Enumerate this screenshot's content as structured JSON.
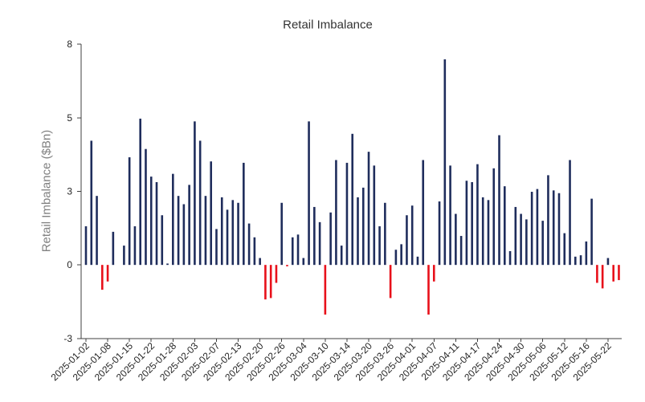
{
  "chart_data": {
    "type": "bar",
    "title": "Retail Imbalance",
    "ylabel": "Retail Imbalance ($Bn)",
    "ylim": [
      -2.67,
      8
    ],
    "yticks": [
      8,
      5.33,
      2.67,
      0,
      -2.67
    ],
    "ytick_labels": [
      "8",
      "5",
      "3",
      "0",
      "-3"
    ],
    "grid": false,
    "legend": "none",
    "colors": {
      "positive": "#1f2d5c",
      "negative": "#e8101a"
    },
    "categories": [
      "2025-01-02",
      "",
      "",
      "",
      "2025-01-08",
      "",
      "",
      "",
      "2025-01-15",
      "",
      "",
      "",
      "2025-01-22",
      "",
      "",
      "",
      "2025-01-28",
      "",
      "",
      "",
      "2025-02-03",
      "",
      "",
      "",
      "2025-02-07",
      "",
      "",
      "",
      "2025-02-13",
      "",
      "",
      "",
      "2025-02-20",
      "",
      "",
      "",
      "2025-02-26",
      "",
      "",
      "",
      "2025-03-04",
      "",
      "",
      "",
      "2025-03-10",
      "",
      "",
      "",
      "2025-03-14",
      "",
      "",
      "",
      "2025-03-20",
      "",
      "",
      "",
      "2025-03-26",
      "",
      "",
      "",
      "2025-04-01",
      "",
      "",
      "",
      "2025-04-07",
      "",
      "",
      "",
      "2025-04-11",
      "",
      "",
      "",
      "2025-04-17",
      "",
      "",
      "",
      "2025-04-24",
      "",
      "",
      "",
      "2025-04-30",
      "",
      "",
      "",
      "2025-05-06",
      "",
      "",
      "",
      "2025-05-12",
      "",
      "",
      "",
      "2025-05-16",
      "",
      "",
      "",
      "2025-05-22",
      "",
      ""
    ],
    "values": [
      1.4,
      4.5,
      2.5,
      -0.9,
      -0.6,
      1.2,
      0,
      0.7,
      3.9,
      1.4,
      5.3,
      4.2,
      3.2,
      3.0,
      1.8,
      0.05,
      3.3,
      2.5,
      2.2,
      2.9,
      5.2,
      4.5,
      2.5,
      3.75,
      1.3,
      2.45,
      2.0,
      2.35,
      2.25,
      3.7,
      1.5,
      1.0,
      0.25,
      -1.25,
      -1.2,
      -0.65,
      2.25,
      -0.05,
      1.0,
      1.1,
      0.25,
      5.2,
      2.1,
      1.55,
      -1.8,
      1.9,
      3.8,
      0.7,
      3.7,
      4.75,
      2.45,
      2.8,
      4.1,
      3.6,
      1.4,
      2.25,
      -1.2,
      0.55,
      0.75,
      1.8,
      2.15,
      0.3,
      3.8,
      -1.8,
      -0.6,
      2.3,
      7.45,
      3.6,
      1.85,
      1.05,
      3.05,
      3.0,
      3.65,
      2.45,
      2.35,
      3.5,
      4.7,
      2.85,
      0.5,
      2.1,
      1.85,
      1.65,
      2.65,
      2.75,
      1.6,
      3.25,
      2.7,
      2.6,
      1.15,
      3.8,
      0.3,
      0.35,
      0.85,
      2.4,
      -0.65,
      -0.85,
      0.25,
      -0.6,
      -0.55
    ]
  }
}
